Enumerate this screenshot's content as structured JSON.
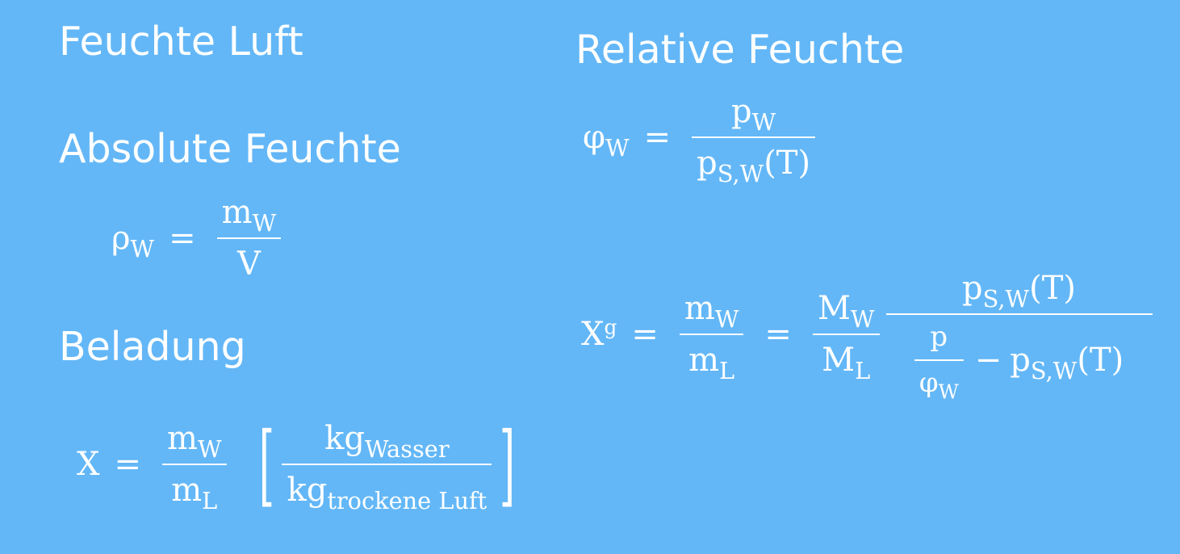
{
  "headings": {
    "feuchte_luft": "Feuchte Luft",
    "absolute_feuchte": "Absolute Feuchte",
    "beladung": "Beladung",
    "relative_feuchte": "Relative Feuchte"
  },
  "formulas": {
    "absolute": {
      "lhs": "ρ",
      "lhs_sub": "W",
      "eq": "=",
      "num": "m",
      "num_sub": "W",
      "den": "V"
    },
    "beladung": {
      "lhs": "X",
      "eq": "=",
      "num": "m",
      "num_sub": "W",
      "den": "m",
      "den_sub": "L",
      "unit_open": "[",
      "unit_num": "kg",
      "unit_num_sub": "Wasser",
      "unit_den": "kg",
      "unit_den_sub": "trockene Luft",
      "unit_close": "]"
    },
    "relative": {
      "lhs": "φ",
      "lhs_sub": "W",
      "eq": "=",
      "num": "p",
      "num_sub": "W",
      "den": "p",
      "den_sub": "S,W",
      "den_tail": "(T)"
    },
    "xg": {
      "lhs": "X",
      "lhs_sup": "g",
      "eq1": "=",
      "f1_num": "m",
      "f1_num_sub": "W",
      "f1_den": "m",
      "f1_den_sub": "L",
      "eq2": "=",
      "f2_num": "M",
      "f2_num_sub": "W",
      "f2_den": "M",
      "f2_den_sub": "L",
      "f3_num": "p",
      "f3_num_sub": "S,W",
      "f3_num_tail": "(T)",
      "f3_inner_num": "p",
      "f3_inner_den": "φ",
      "f3_inner_den_sub": "W",
      "f3_minus": "−",
      "f3_den_p": "p",
      "f3_den_p_sub": "S,W",
      "f3_den_tail": "(T)"
    }
  }
}
